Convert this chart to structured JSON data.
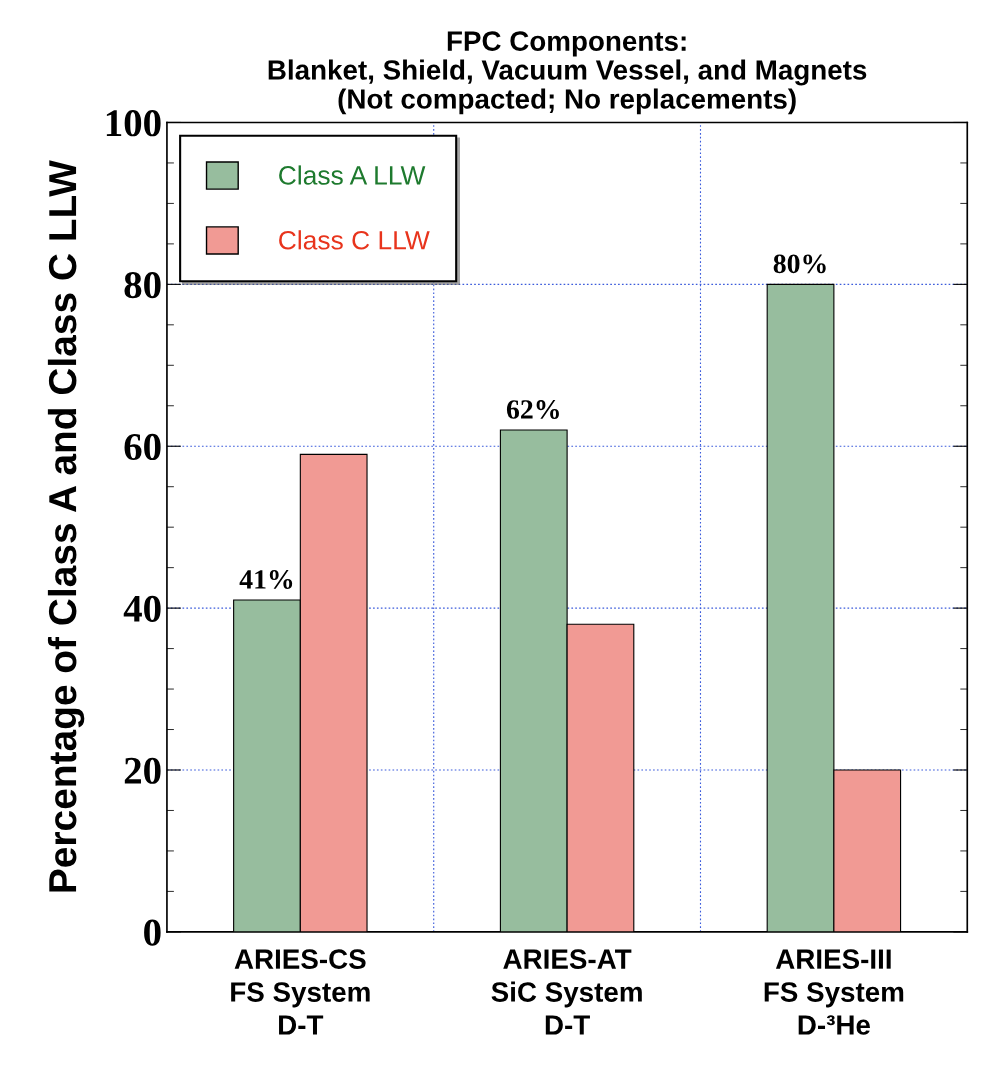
{
  "chart_data": {
    "type": "bar",
    "title": "FPC Components:\nBlanket, Shield, Vacuum Vessel, and Magnets\n(Not compacted; No replacements)",
    "ylabel": "Percentage of Class A and Class C LLW",
    "categories": [
      "ARIES-CS\nFS System\nD-T",
      "ARIES-AT\nSiC System\nD-T",
      "ARIES-III\nFS System\nD-³He"
    ],
    "series": [
      {
        "name": "Class A LLW",
        "color": "#97bd9e",
        "values": [
          41,
          62,
          80
        ],
        "value_labels": [
          "41%",
          "62%",
          "80%"
        ]
      },
      {
        "name": "Class C LLW",
        "color": "#f19a94",
        "values": [
          59,
          38,
          20
        ]
      }
    ],
    "ylim": [
      0,
      100
    ],
    "yticks": [
      0,
      20,
      40,
      60,
      80,
      100
    ],
    "grid": true,
    "legend": "top left"
  }
}
